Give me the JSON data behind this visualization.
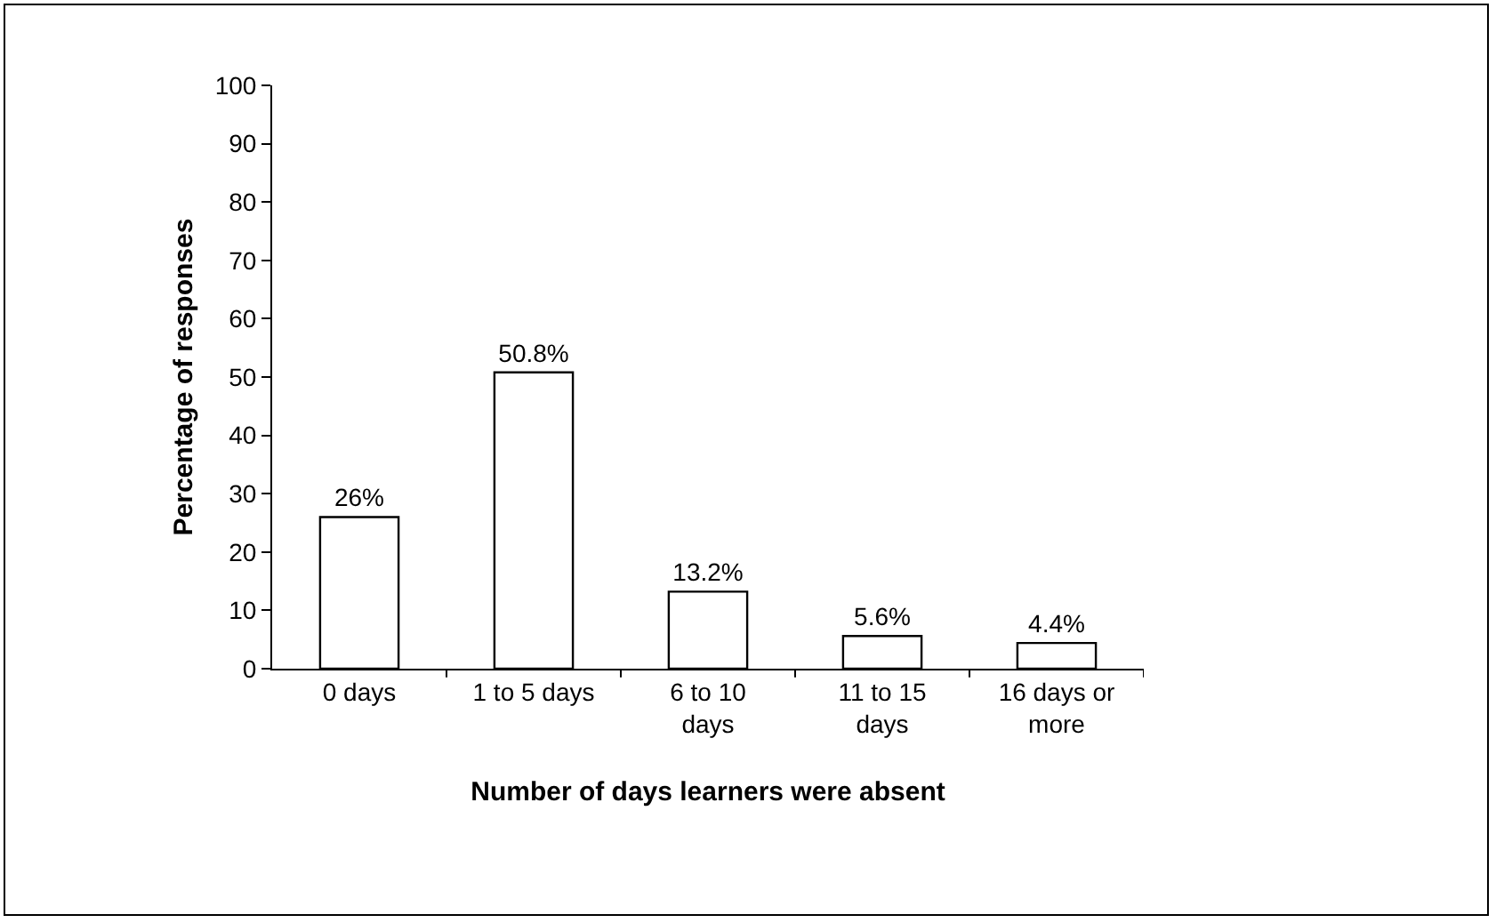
{
  "chart_data": {
    "type": "bar",
    "xlabel": "Number of days learners were absent",
    "ylabel": "Percentage of responses",
    "categories": [
      "0 days",
      "1 to 5 days",
      "6 to 10 days",
      "11 to 15 days",
      "16 days or more"
    ],
    "values": [
      26,
      50.8,
      13.2,
      5.6,
      4.4
    ],
    "value_labels": [
      "26%",
      "50.8%",
      "13.2%",
      "5.6%",
      "4.4%"
    ],
    "color": "#ffffff",
    "ylim": [
      0,
      100
    ],
    "yticks": [
      0,
      10,
      20,
      30,
      40,
      50,
      60,
      70,
      80,
      90,
      100
    ],
    "grid": false,
    "legend": false
  }
}
